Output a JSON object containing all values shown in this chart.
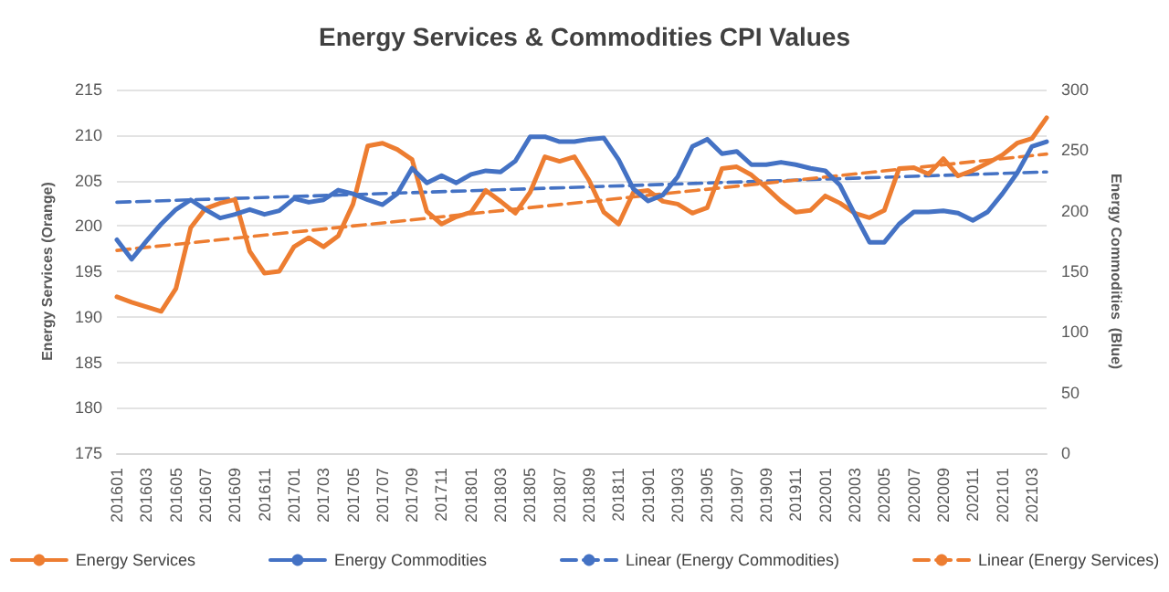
{
  "chart_data": {
    "type": "line",
    "title": "Energy Services & Commodities CPI Values",
    "ylabel": "Energy Services (Orange)",
    "y2label": "Energy Commodities  (Blue)",
    "categories": [
      "201601",
      null,
      "201603",
      null,
      "201605",
      null,
      "201607",
      null,
      "201609",
      null,
      "201611",
      null,
      "201701",
      null,
      "201703",
      null,
      "201705",
      null,
      "201707",
      null,
      "201709",
      null,
      "201711",
      null,
      "201801",
      null,
      "201803",
      null,
      "201805",
      null,
      "201807",
      null,
      "201809",
      null,
      "201811",
      null,
      "201901",
      null,
      "201903",
      null,
      "201905",
      null,
      "201907",
      null,
      "201909",
      null,
      "201911",
      null,
      "202001",
      null,
      "202003",
      null,
      "202005",
      null,
      "202007",
      null,
      "202009",
      null,
      "202011",
      null,
      "202101",
      null,
      "202103",
      null
    ],
    "series": [
      {
        "name": "Energy Services",
        "color": "#ed7d31",
        "values": [
          192.2,
          191.6,
          191.1,
          190.6,
          193.1,
          199.8,
          201.9,
          202.5,
          202.9,
          197.2,
          194.8,
          195.0,
          197.7,
          198.7,
          197.7,
          198.9,
          202.4,
          208.8,
          209.1,
          208.4,
          207.3,
          201.6,
          200.2,
          201.0,
          201.5,
          203.9,
          202.7,
          201.4,
          203.7,
          207.6,
          207.1,
          207.6,
          205.0,
          201.5,
          200.2,
          203.7,
          203.9,
          202.7,
          202.4,
          201.4,
          202.0,
          206.3,
          206.5,
          205.6,
          204.2,
          202.7,
          201.5,
          201.7,
          203.3,
          202.5,
          201.4,
          200.9,
          201.7,
          206.3,
          206.4,
          205.7,
          207.4,
          205.5,
          206.1,
          206.9,
          207.8,
          209.1,
          209.6,
          211.9
        ]
      },
      {
        "name": "Energy Commodities",
        "color": "#4472c4",
        "axis": "y2",
        "values": [
          176,
          160,
          175,
          189,
          201,
          209,
          201,
          194,
          197,
          201,
          197,
          200,
          210,
          207,
          209,
          217,
          214,
          209,
          205,
          214,
          235,
          223,
          229,
          223,
          230,
          233,
          232,
          241,
          261,
          261,
          257,
          257,
          259,
          260,
          242,
          218,
          208,
          213,
          228,
          253,
          259,
          247,
          249,
          238,
          238,
          240,
          238,
          235,
          233,
          221,
          197,
          174,
          174,
          189,
          199,
          199,
          200,
          198,
          192,
          199,
          214,
          231,
          253,
          257
        ]
      },
      {
        "name": "Linear (Energy Commodities)",
        "color": "#4472c4",
        "axis": "y2",
        "line_style": "dashed",
        "values": [
          207,
          null,
          null,
          null,
          null,
          null,
          null,
          null,
          null,
          null,
          null,
          null,
          null,
          null,
          null,
          null,
          null,
          null,
          null,
          null,
          null,
          null,
          null,
          null,
          null,
          null,
          null,
          null,
          null,
          null,
          null,
          null,
          null,
          null,
          null,
          null,
          null,
          null,
          null,
          null,
          null,
          null,
          null,
          null,
          null,
          null,
          null,
          null,
          null,
          null,
          null,
          null,
          null,
          null,
          null,
          null,
          null,
          null,
          null,
          null,
          null,
          null,
          null,
          232
        ]
      },
      {
        "name": "Linear (Energy Services)",
        "color": "#ed7d31",
        "line_style": "dashed",
        "values": [
          197.3,
          null,
          null,
          null,
          null,
          null,
          null,
          null,
          null,
          null,
          null,
          null,
          null,
          null,
          null,
          null,
          null,
          null,
          null,
          null,
          null,
          null,
          null,
          null,
          null,
          null,
          null,
          null,
          null,
          null,
          null,
          null,
          null,
          null,
          null,
          null,
          null,
          null,
          null,
          null,
          null,
          null,
          null,
          null,
          null,
          null,
          null,
          null,
          null,
          null,
          null,
          null,
          null,
          null,
          null,
          null,
          null,
          null,
          null,
          null,
          null,
          null,
          null,
          207.9
        ]
      }
    ],
    "ylim": [
      175,
      215
    ],
    "yticks": [
      175,
      180,
      185,
      190,
      195,
      200,
      205,
      210,
      215
    ],
    "y2lim": [
      0,
      300
    ],
    "y2ticks": [
      0,
      50,
      100,
      150,
      200,
      250,
      300
    ],
    "grid": "y",
    "legend": "bottom",
    "marker": "none",
    "line_style": "solid"
  }
}
